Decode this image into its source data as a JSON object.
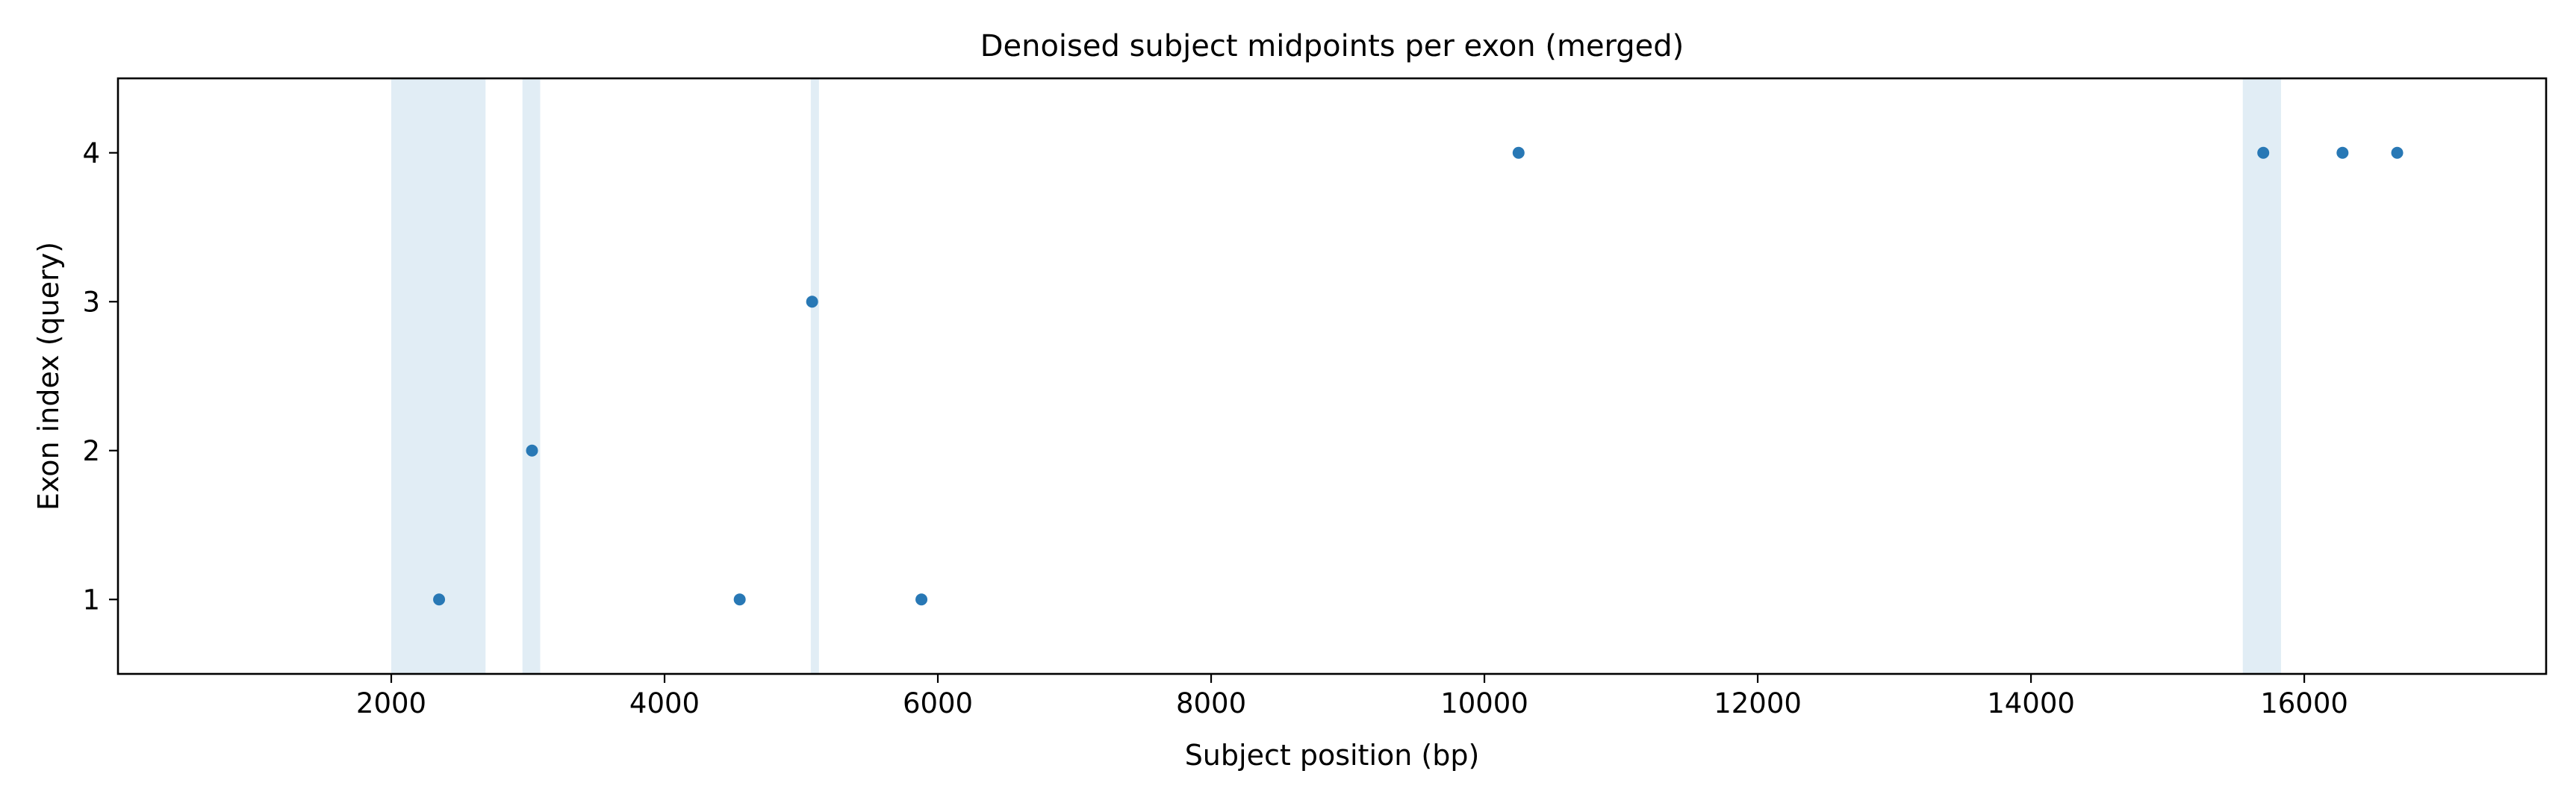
{
  "chart_data": {
    "type": "scatter",
    "title": "Denoised subject midpoints per exon (merged)",
    "xlabel": "Subject position (bp)",
    "ylabel": "Exon index (query)",
    "xlim": [
      0,
      17770
    ],
    "ylim": [
      0.5,
      4.5
    ],
    "xticks": [
      {
        "value": 2000,
        "label": "2000"
      },
      {
        "value": 4000,
        "label": "4000"
      },
      {
        "value": 6000,
        "label": "6000"
      },
      {
        "value": 8000,
        "label": "8000"
      },
      {
        "value": 10000,
        "label": "10000"
      },
      {
        "value": 12000,
        "label": "12000"
      },
      {
        "value": 14000,
        "label": "14000"
      },
      {
        "value": 16000,
        "label": "16000"
      }
    ],
    "yticks": [
      {
        "value": 1,
        "label": "1"
      },
      {
        "value": 2,
        "label": "2"
      },
      {
        "value": 3,
        "label": "3"
      },
      {
        "value": 4,
        "label": "4"
      }
    ],
    "grid": false,
    "legend": null,
    "point_color": "#2878b5",
    "band_color": "#e1edf5",
    "shaded_spans": [
      {
        "start": 2000,
        "end": 2690
      },
      {
        "start": 2960,
        "end": 3090
      },
      {
        "start": 5070,
        "end": 5130
      },
      {
        "start": 15550,
        "end": 15830
      }
    ],
    "points": [
      {
        "x": 2350,
        "y": 1
      },
      {
        "x": 3030,
        "y": 2
      },
      {
        "x": 4550,
        "y": 1
      },
      {
        "x": 5080,
        "y": 3
      },
      {
        "x": 5880,
        "y": 1
      },
      {
        "x": 10250,
        "y": 4
      },
      {
        "x": 15700,
        "y": 4
      },
      {
        "x": 16280,
        "y": 4
      },
      {
        "x": 16680,
        "y": 4
      }
    ]
  }
}
